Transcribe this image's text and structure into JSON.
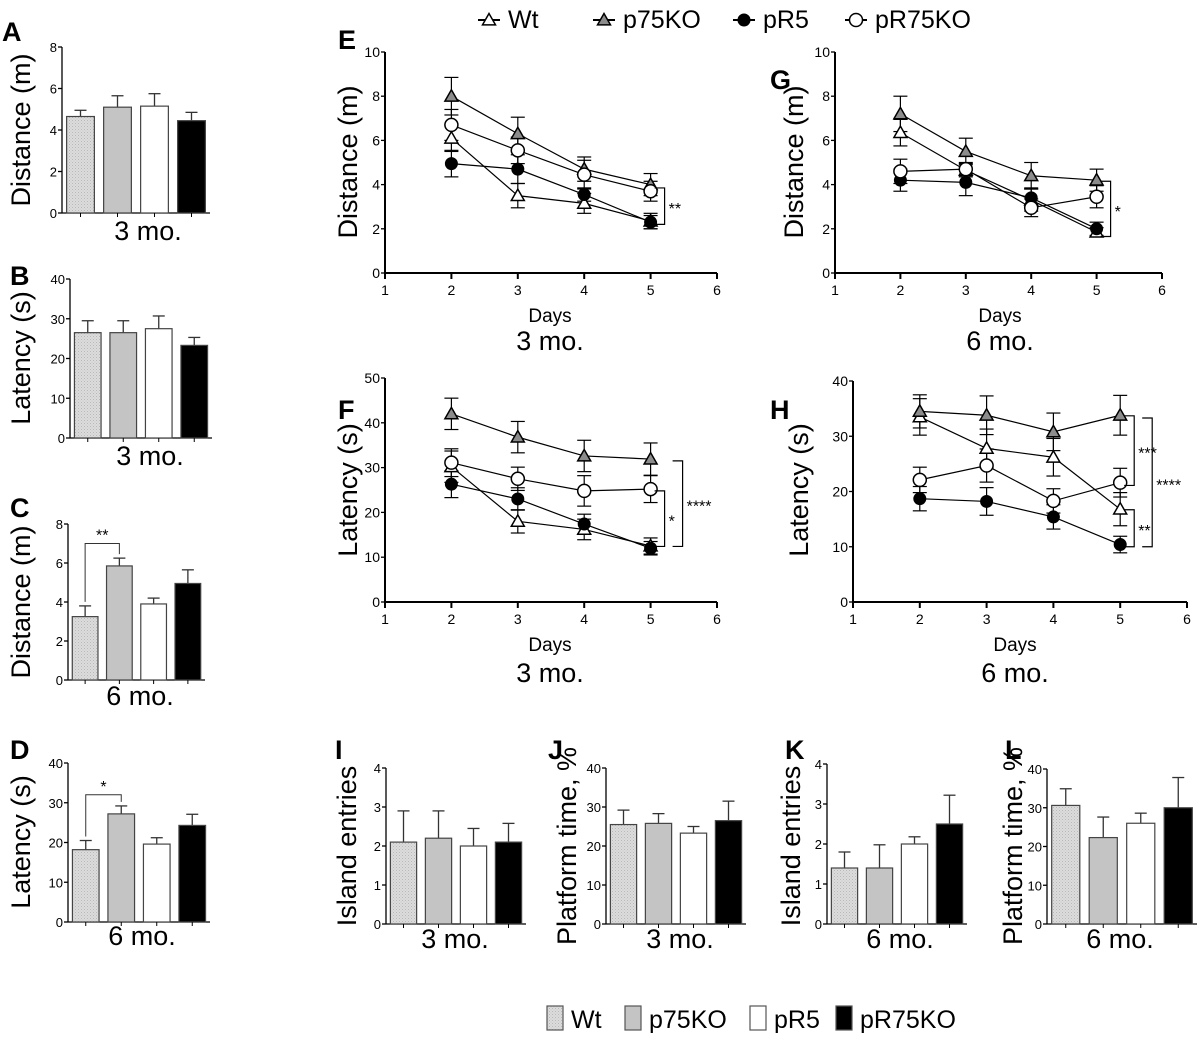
{
  "figure": {
    "groups": [
      "Wt",
      "p75KO",
      "pR5",
      "pR75KO"
    ],
    "group_colors": {
      "Wt": "#d4d4d4",
      "p75KO": "#bdbdbd",
      "pR5": "#ffffff",
      "pR75KO": "#000000"
    },
    "line_markers": {
      "Wt": "open-triangle",
      "p75KO": "gray-triangle",
      "pR5": "filled-circle",
      "pR75KO": "open-circle"
    },
    "line_legend": [
      {
        "label": "Wt",
        "marker": "open-triangle"
      },
      {
        "label": "p75KO",
        "marker": "gray-triangle"
      },
      {
        "label": "pR5",
        "marker": "filled-circle"
      },
      {
        "label": "pR75KO",
        "marker": "open-circle"
      }
    ],
    "bar_legend": [
      {
        "label": "Wt",
        "swatch": "stippled-light-gray"
      },
      {
        "label": "p75KO",
        "swatch": "gray"
      },
      {
        "label": "pR5",
        "swatch": "white"
      },
      {
        "label": "pR75KO",
        "swatch": "black"
      }
    ]
  },
  "chart_data": [
    {
      "panel": "A",
      "type": "bar",
      "ylabel": "Distance (m)",
      "xlabel": "3 mo.",
      "ylim": [
        0,
        8
      ],
      "yticks": [
        0,
        2,
        4,
        6,
        8
      ],
      "categories": [
        "Wt",
        "p75KO",
        "pR5",
        "pR75KO"
      ],
      "values": [
        4.65,
        5.1,
        5.15,
        4.45
      ],
      "errors": [
        0.3,
        0.55,
        0.6,
        0.4
      ],
      "significance": []
    },
    {
      "panel": "B",
      "type": "bar",
      "ylabel": "Latency (s)",
      "xlabel": "3 mo.",
      "ylim": [
        0,
        40
      ],
      "yticks": [
        0,
        10,
        20,
        30,
        40
      ],
      "categories": [
        "Wt",
        "p75KO",
        "pR5",
        "pR75KO"
      ],
      "values": [
        26.5,
        26.5,
        27.5,
        23.3
      ],
      "errors": [
        3.0,
        3.0,
        3.2,
        2.0
      ],
      "significance": []
    },
    {
      "panel": "C",
      "type": "bar",
      "ylabel": "Distance (m)",
      "xlabel": "6 mo.",
      "ylim": [
        0,
        8
      ],
      "yticks": [
        0,
        2,
        4,
        6,
        8
      ],
      "categories": [
        "Wt",
        "p75KO",
        "pR5",
        "pR75KO"
      ],
      "values": [
        3.25,
        5.85,
        3.9,
        4.95
      ],
      "errors": [
        0.55,
        0.4,
        0.3,
        0.7
      ],
      "significance": [
        {
          "from": 0,
          "to": 1,
          "label": "**",
          "y": 7.0
        }
      ]
    },
    {
      "panel": "D",
      "type": "bar",
      "ylabel": "Latency (s)",
      "xlabel": "6 mo.",
      "ylim": [
        0,
        40
      ],
      "yticks": [
        0,
        10,
        20,
        30,
        40
      ],
      "categories": [
        "Wt",
        "p75KO",
        "pR5",
        "pR75KO"
      ],
      "values": [
        18.2,
        27.2,
        19.6,
        24.3
      ],
      "errors": [
        2.3,
        2.0,
        1.6,
        2.8
      ],
      "significance": [
        {
          "from": 0,
          "to": 1,
          "label": "*",
          "y": 32
        }
      ]
    },
    {
      "panel": "E",
      "type": "line",
      "ylabel": "Distance (m)",
      "xlabel": "Days",
      "subtitle": "3 mo.",
      "xlim": [
        1,
        6
      ],
      "ylim": [
        0,
        10
      ],
      "xticks": [
        1,
        2,
        3,
        4,
        5,
        6
      ],
      "yticks": [
        0,
        2,
        4,
        6,
        8,
        10
      ],
      "x": [
        2,
        3,
        4,
        5
      ],
      "series": [
        {
          "name": "Wt",
          "values": [
            6.1,
            3.5,
            3.15,
            2.35
          ],
          "errors": [
            0.6,
            0.55,
            0.45,
            0.35
          ]
        },
        {
          "name": "p75KO",
          "values": [
            8.0,
            6.3,
            4.7,
            4.0
          ],
          "errors": [
            0.85,
            0.75,
            0.55,
            0.5
          ]
        },
        {
          "name": "pR5",
          "values": [
            4.95,
            4.7,
            3.55,
            2.3
          ],
          "errors": [
            0.6,
            0.65,
            0.3,
            0.3
          ]
        },
        {
          "name": "pR75KO",
          "values": [
            6.7,
            5.55,
            4.45,
            3.7
          ],
          "errors": [
            0.7,
            0.6,
            0.65,
            0.45
          ]
        }
      ],
      "significance": [
        {
          "x": 5,
          "y_range": [
            2.2,
            3.85
          ],
          "label": "**"
        }
      ]
    },
    {
      "panel": "F",
      "type": "line",
      "ylabel": "Latency (s)",
      "xlabel": "Days",
      "subtitle": "3 mo.",
      "xlim": [
        1,
        6
      ],
      "ylim": [
        0,
        50
      ],
      "xticks": [
        1,
        2,
        3,
        4,
        5,
        6
      ],
      "yticks": [
        0,
        10,
        20,
        30,
        40,
        50
      ],
      "x": [
        2,
        3,
        4,
        5
      ],
      "series": [
        {
          "name": "Wt",
          "values": [
            30.2,
            18.0,
            16.2,
            12.5
          ],
          "errors": [
            3.5,
            2.6,
            2.3,
            1.8
          ]
        },
        {
          "name": "p75KO",
          "values": [
            42.0,
            36.8,
            32.6,
            31.9
          ],
          "errors": [
            3.5,
            3.5,
            3.5,
            3.6
          ]
        },
        {
          "name": "pR5",
          "values": [
            26.3,
            23.0,
            17.4,
            12.0
          ],
          "errors": [
            3.0,
            2.5,
            2.2,
            1.5
          ]
        },
        {
          "name": "pR75KO",
          "values": [
            31.1,
            27.5,
            24.8,
            25.2
          ],
          "errors": [
            3.1,
            2.6,
            3.4,
            3.0
          ]
        }
      ],
      "significance": [
        {
          "x": 5,
          "y_range": [
            12.4,
            24.8
          ],
          "label": "*"
        },
        {
          "x": 5.5,
          "y_range": [
            12.4,
            31.5
          ],
          "label": "****"
        }
      ]
    },
    {
      "panel": "G",
      "type": "line",
      "ylabel": "Distance (m)",
      "xlabel": "Days",
      "subtitle": "6 mo.",
      "xlim": [
        1,
        6
      ],
      "ylim": [
        0,
        10
      ],
      "xticks": [
        1,
        2,
        3,
        4,
        5,
        6
      ],
      "yticks": [
        0,
        2,
        4,
        6,
        8,
        10
      ],
      "x": [
        2,
        3,
        4,
        5
      ],
      "series": [
        {
          "name": "Wt",
          "values": [
            6.35,
            4.65,
            3.3,
            1.85
          ],
          "errors": [
            0.6,
            0.3,
            0.5,
            0.2
          ]
        },
        {
          "name": "p75KO",
          "values": [
            7.2,
            5.5,
            4.4,
            4.2
          ],
          "errors": [
            0.8,
            0.6,
            0.6,
            0.5
          ]
        },
        {
          "name": "pR5",
          "values": [
            4.2,
            4.1,
            3.4,
            2.0
          ],
          "errors": [
            0.5,
            0.6,
            0.45,
            0.3
          ]
        },
        {
          "name": "pR75KO",
          "values": [
            4.6,
            4.7,
            2.95,
            3.45
          ],
          "errors": [
            0.55,
            0.3,
            0.4,
            0.5
          ]
        }
      ],
      "significance": [
        {
          "x": 5,
          "y_range": [
            1.65,
            4.15
          ],
          "label": "*"
        }
      ]
    },
    {
      "panel": "H",
      "type": "line",
      "ylabel": "Latency (s)",
      "xlabel": "Days",
      "subtitle": "6 mo.",
      "xlim": [
        1,
        6
      ],
      "ylim": [
        0,
        40
      ],
      "xticks": [
        1,
        2,
        3,
        4,
        5,
        6
      ],
      "yticks": [
        0,
        10,
        20,
        30,
        40
      ],
      "x": [
        2,
        3,
        4,
        5
      ],
      "series": [
        {
          "name": "Wt",
          "values": [
            33.5,
            27.8,
            26.2,
            16.8
          ],
          "errors": [
            3.3,
            3.5,
            3.4,
            3.0
          ]
        },
        {
          "name": "p75KO",
          "values": [
            34.5,
            33.8,
            30.8,
            33.8
          ],
          "errors": [
            3.0,
            3.5,
            3.4,
            3.6
          ]
        },
        {
          "name": "pR5",
          "values": [
            18.7,
            18.2,
            15.4,
            10.4
          ],
          "errors": [
            2.2,
            2.5,
            2.2,
            1.5
          ]
        },
        {
          "name": "pR75KO",
          "values": [
            22.1,
            24.7,
            18.3,
            21.6
          ],
          "errors": [
            2.3,
            3.0,
            2.2,
            2.6
          ]
        }
      ],
      "significance": [
        {
          "x": 5,
          "y_range": [
            21.1,
            33.7
          ],
          "label": "***"
        },
        {
          "x": 5,
          "y_range": [
            10.0,
            16.7
          ],
          "label": "**"
        },
        {
          "x": 5.5,
          "y_range": [
            10.0,
            33.3
          ],
          "label": "****"
        }
      ]
    },
    {
      "panel": "I",
      "type": "bar",
      "ylabel": "Island entries",
      "xlabel": "3 mo.",
      "ylim": [
        0,
        4
      ],
      "yticks": [
        0,
        1,
        2,
        3,
        4
      ],
      "categories": [
        "Wt",
        "p75KO",
        "pR5",
        "pR75KO"
      ],
      "values": [
        2.1,
        2.2,
        2.0,
        2.1
      ],
      "errors": [
        0.8,
        0.7,
        0.45,
        0.48
      ],
      "significance": []
    },
    {
      "panel": "J",
      "type": "bar",
      "ylabel": "Platform time, %",
      "xlabel": "3 mo.",
      "ylim": [
        0,
        40
      ],
      "yticks": [
        0,
        10,
        20,
        30,
        40
      ],
      "categories": [
        "Wt",
        "p75KO",
        "pR5",
        "pR75KO"
      ],
      "values": [
        25.5,
        25.8,
        23.3,
        26.5
      ],
      "errors": [
        3.7,
        2.5,
        1.7,
        5.0
      ],
      "significance": []
    },
    {
      "panel": "K",
      "type": "bar",
      "ylabel": "Island entries",
      "xlabel": "6 mo.",
      "ylim": [
        0,
        4
      ],
      "yticks": [
        0,
        1,
        2,
        3,
        4
      ],
      "categories": [
        "Wt",
        "p75KO",
        "pR5",
        "pR75KO"
      ],
      "values": [
        1.4,
        1.4,
        2.0,
        2.5
      ],
      "errors": [
        0.4,
        0.58,
        0.18,
        0.72
      ],
      "significance": []
    },
    {
      "panel": "L",
      "type": "bar",
      "ylabel": "Platform time, %",
      "xlabel": "6 mo.",
      "ylim": [
        0,
        40
      ],
      "yticks": [
        0,
        10,
        20,
        30,
        40
      ],
      "categories": [
        "Wt",
        "p75KO",
        "pR5",
        "pR75KO"
      ],
      "values": [
        30.6,
        22.3,
        26.0,
        30.0
      ],
      "errors": [
        4.3,
        5.3,
        2.6,
        7.8
      ],
      "significance": []
    }
  ]
}
